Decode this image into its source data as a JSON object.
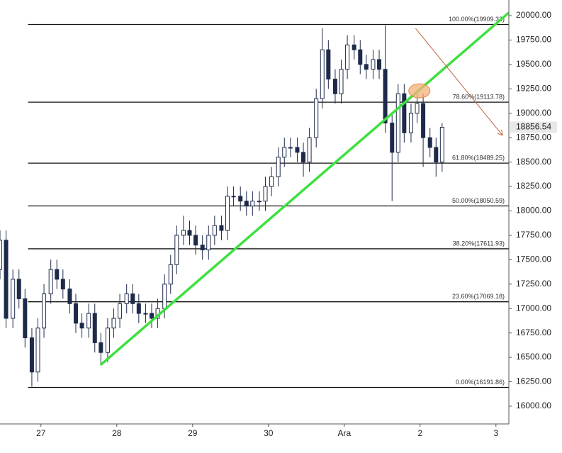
{
  "chart_data": {
    "type": "candlestick",
    "candle_color": "#1e2a4a",
    "x": [
      -0.54,
      -0.46,
      -0.37,
      -0.29,
      -0.21,
      -0.12,
      -0.04,
      0.04,
      0.13,
      0.21,
      0.29,
      0.38,
      0.46,
      0.54,
      0.63,
      0.71,
      0.79,
      0.88,
      0.96,
      1.04,
      1.13,
      1.21,
      1.29,
      1.38,
      1.46,
      1.54,
      1.63,
      1.71,
      1.79,
      1.88,
      1.96,
      2.04,
      2.13,
      2.21,
      2.29,
      2.38,
      2.46,
      2.54,
      2.63,
      2.71,
      2.79,
      2.88,
      2.96,
      3.04,
      3.13,
      3.21,
      3.29,
      3.38,
      3.46,
      3.54,
      3.63,
      3.71,
      3.79,
      3.88,
      3.96,
      4.04,
      4.13,
      4.21,
      4.29,
      4.38,
      4.46,
      4.54,
      4.63,
      4.71,
      4.79,
      4.88,
      4.96,
      5.04,
      5.13,
      5.21,
      5.29
    ],
    "open": [
      17400,
      17700,
      16900,
      17300,
      17100,
      16700,
      16350,
      16800,
      17150,
      17400,
      17300,
      17200,
      17050,
      16850,
      16800,
      16950,
      16650,
      16550,
      16800,
      16900,
      17050,
      17150,
      17050,
      16950,
      16950,
      16900,
      17000,
      17250,
      17450,
      17750,
      17800,
      17750,
      17650,
      17600,
      17750,
      17850,
      17800,
      18150,
      18150,
      18100,
      18050,
      18100,
      18100,
      18250,
      18350,
      18550,
      18650,
      18650,
      18600,
      18500,
      18750,
      19150,
      19650,
      19350,
      19200,
      19450,
      19700,
      19650,
      19500,
      19450,
      19550,
      19450,
      18900,
      18600,
      19200,
      18800,
      19000,
      19100,
      18750,
      18650,
      18500
    ],
    "high": [
      17800,
      17800,
      17400,
      17400,
      17200,
      16800,
      16900,
      17250,
      17500,
      17500,
      17400,
      17300,
      17150,
      16950,
      17050,
      17050,
      16750,
      16900,
      17000,
      17150,
      17250,
      17250,
      17150,
      17050,
      17050,
      17100,
      17350,
      17550,
      17850,
      17950,
      17900,
      17850,
      17750,
      17850,
      17950,
      17950,
      18250,
      18250,
      18250,
      18200,
      18200,
      18200,
      18350,
      18450,
      18650,
      18750,
      18750,
      18750,
      18700,
      18850,
      19250,
      19870,
      19750,
      19450,
      19550,
      19800,
      19800,
      19750,
      19600,
      19650,
      19650,
      19900,
      19000,
      19300,
      19300,
      19100,
      19200,
      19200,
      18850,
      18750,
      18900
    ],
    "low": [
      17300,
      16800,
      16800,
      17000,
      16600,
      16200,
      16250,
      16700,
      17050,
      17200,
      17100,
      16950,
      16750,
      16700,
      16700,
      16550,
      16420,
      16450,
      16700,
      16800,
      16950,
      16950,
      16850,
      16850,
      16800,
      16800,
      16900,
      17150,
      17350,
      17650,
      17650,
      17550,
      17500,
      17500,
      17650,
      17700,
      17700,
      18050,
      18000,
      17950,
      17950,
      18000,
      18000,
      18150,
      18250,
      18450,
      18550,
      18500,
      18350,
      18400,
      18650,
      19050,
      19250,
      19100,
      19100,
      19350,
      19550,
      19400,
      19350,
      19350,
      19350,
      18800,
      18100,
      18500,
      18700,
      18700,
      18900,
      18450,
      18550,
      18350,
      18400
    ],
    "close": [
      17700,
      16900,
      17300,
      17100,
      16700,
      16350,
      16800,
      17150,
      17400,
      17300,
      17200,
      17050,
      16850,
      16800,
      16950,
      16650,
      16550,
      16800,
      16900,
      17050,
      17150,
      17050,
      16950,
      16950,
      16900,
      17000,
      17250,
      17450,
      17750,
      17800,
      17750,
      17650,
      17600,
      17750,
      17850,
      17800,
      18150,
      18150,
      18100,
      18050,
      18100,
      18100,
      18250,
      18350,
      18550,
      18650,
      18650,
      18600,
      18500,
      18750,
      19150,
      19650,
      19350,
      19200,
      19450,
      19700,
      19650,
      19500,
      19450,
      19550,
      19450,
      18900,
      18600,
      19200,
      18800,
      19000,
      19100,
      18750,
      18650,
      18500,
      18856.54
    ],
    "xlim": [
      -0.54,
      6.17
    ],
    "xticks": [
      {
        "value": 0,
        "label": "27"
      },
      {
        "value": 1,
        "label": "28"
      },
      {
        "value": 2,
        "label": "29"
      },
      {
        "value": 3,
        "label": "30"
      },
      {
        "value": 4,
        "label": "Ara"
      },
      {
        "value": 5,
        "label": "2"
      },
      {
        "value": 6,
        "label": "3"
      }
    ],
    "ylim": [
      15818,
      20160
    ],
    "yticks": [
      {
        "value": 16000,
        "label": "16000.00"
      },
      {
        "value": 16250,
        "label": "16250.00"
      },
      {
        "value": 16500,
        "label": "16500.00"
      },
      {
        "value": 16750,
        "label": "16750.00"
      },
      {
        "value": 17000,
        "label": "17000.00"
      },
      {
        "value": 17250,
        "label": "17250.00"
      },
      {
        "value": 17500,
        "label": "17500.00"
      },
      {
        "value": 17750,
        "label": "17750.00"
      },
      {
        "value": 18000,
        "label": "18000.00"
      },
      {
        "value": 18250,
        "label": "18250.00"
      },
      {
        "value": 18500,
        "label": "18500.00"
      },
      {
        "value": 18750,
        "label": "18750.00"
      },
      {
        "value": 19000,
        "label": "19000.00"
      },
      {
        "value": 19250,
        "label": "19250.00"
      },
      {
        "value": 19500,
        "label": "19500.00"
      },
      {
        "value": 19750,
        "label": "19750.00"
      },
      {
        "value": 20000,
        "label": "20000.00"
      }
    ],
    "fib_start_x": -0.17,
    "fib_levels": [
      {
        "value": 19909.32,
        "label": "100.00%(19909.32)"
      },
      {
        "value": 19113.78,
        "label": "78.60%(19113.78)"
      },
      {
        "value": 18489.25,
        "label": "61.80%(18489.25)"
      },
      {
        "value": 18050.59,
        "label": "50.00%(18050.59)"
      },
      {
        "value": 17611.93,
        "label": "38.20%(17611.93)"
      },
      {
        "value": 17069.18,
        "label": "23.60%(17069.18)"
      },
      {
        "value": 16191.86,
        "label": "0.00%(16191.86)"
      }
    ],
    "trend_line": {
      "color": "#3ee03e",
      "x": [
        0.785,
        6.168
      ],
      "values": [
        16421,
        20029
      ]
    },
    "arrow": {
      "color": "#c0653e",
      "x": [
        4.94,
        6.08
      ],
      "values": [
        19869,
        18780
      ]
    },
    "highlight": {
      "color": "#f5b07a",
      "x": 4.99,
      "value": 19230
    }
  }
}
